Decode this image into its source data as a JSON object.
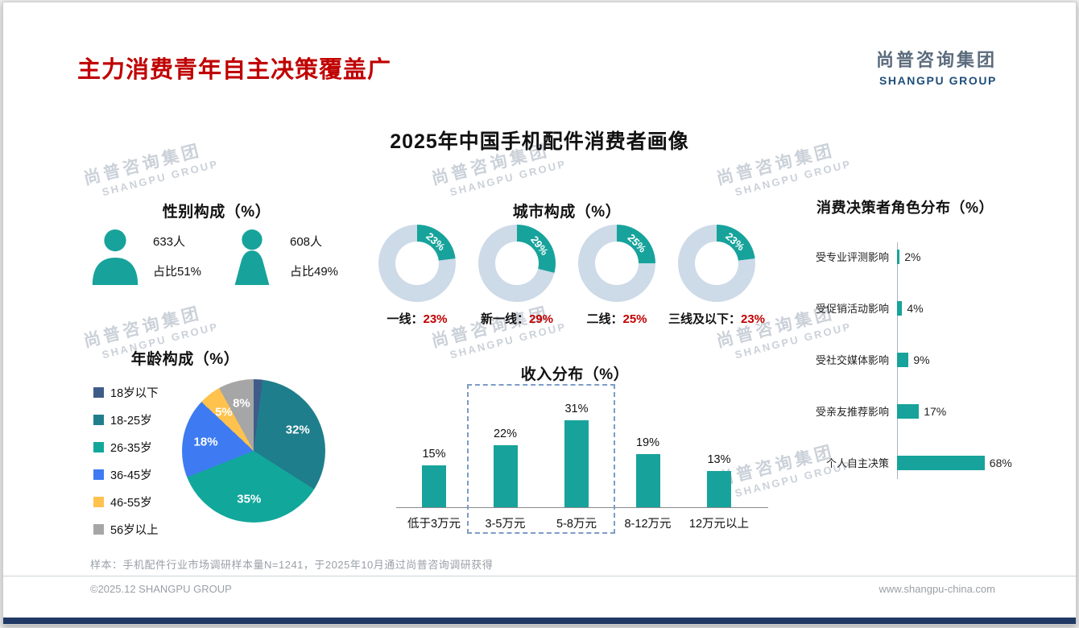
{
  "page": {
    "title": "主力消费青年自主决策覆盖广",
    "logo": {
      "cn": "尚普咨询集团",
      "en": "SHANGPU GROUP"
    },
    "main_title": "2025年中国手机配件消费者画像",
    "footnote": "样本：手机配件行业市场调研样本量N=1241，于2025年10月通过尚普咨询调研获得",
    "footer_left": "©2025.12 SHANGPU GROUP",
    "footer_right": "www.shangpu-china.com",
    "watermark": {
      "cn": "尚普咨询集团",
      "en": "SHANGPU GROUP"
    }
  },
  "colors": {
    "accent_red": "#C00000",
    "teal": "#17A39B",
    "donut_track": "#CDDAE7",
    "navy": "#1F3864",
    "logo_cn": "#5B6B7C",
    "logo_en": "#1F4E79",
    "watermark": "#CBD1D9",
    "text_gray": "#9AA0A6",
    "axis_gray": "#A9B4BF",
    "highlight_box": "#7C9CC6"
  },
  "gender": {
    "title": "性别构成（%）",
    "male": {
      "count": "633人",
      "share": "占比51%"
    },
    "female": {
      "count": "608人",
      "share": "占比49%"
    }
  },
  "city": {
    "title": "城市构成（%）",
    "items": [
      {
        "label": "一线：",
        "value": "23%",
        "pct": 23
      },
      {
        "label": "新一线：",
        "value": "29%",
        "pct": 29
      },
      {
        "label": "二线：",
        "value": "25%",
        "pct": 25
      },
      {
        "label": "三线及以下：",
        "value": "23%",
        "pct": 23
      }
    ]
  },
  "decision": {
    "title": "消费决策者角色分布（%）",
    "items": [
      {
        "label": "受专业评测影响",
        "value": "2%",
        "pct": 2
      },
      {
        "label": "受促销活动影响",
        "value": "4%",
        "pct": 4
      },
      {
        "label": "受社交媒体影响",
        "value": "9%",
        "pct": 9
      },
      {
        "label": "受亲友推荐影响",
        "value": "17%",
        "pct": 17
      },
      {
        "label": "个人自主决策",
        "value": "68%",
        "pct": 68
      }
    ]
  },
  "age": {
    "title": "年龄构成（%）",
    "slices": [
      {
        "label": "18岁以下",
        "pct": 2,
        "color": "#3E5C8A",
        "show_label": false
      },
      {
        "label": "18-25岁",
        "pct": 32,
        "color": "#1F7E8C",
        "show_label": true
      },
      {
        "label": "26-35岁",
        "pct": 35,
        "color": "#12A79B",
        "show_label": true
      },
      {
        "label": "36-45岁",
        "pct": 18,
        "color": "#3E7BF2",
        "show_label": true
      },
      {
        "label": "46-55岁",
        "pct": 5,
        "color": "#FFC24D",
        "show_label": true
      },
      {
        "label": "56岁以上",
        "pct": 8,
        "color": "#A6A6A6",
        "show_label": true
      }
    ]
  },
  "income": {
    "title": "收入分布（%）",
    "items": [
      {
        "label": "低于3万元",
        "value": "15%",
        "pct": 15
      },
      {
        "label": "3-5万元",
        "value": "22%",
        "pct": 22
      },
      {
        "label": "5-8万元",
        "value": "31%",
        "pct": 31
      },
      {
        "label": "8-12万元",
        "value": "19%",
        "pct": 19
      },
      {
        "label": "12万元以上",
        "value": "13%",
        "pct": 13
      }
    ],
    "highlight_range": [
      1,
      2
    ]
  },
  "chart_data": [
    {
      "type": "table",
      "title": "性别构成（%）",
      "columns": [
        "性别",
        "人数",
        "占比"
      ],
      "rows": [
        [
          "男",
          "633人",
          "51%"
        ],
        [
          "女",
          "608人",
          "49%"
        ]
      ]
    },
    {
      "type": "pie",
      "variant": "donut-gauges",
      "title": "城市构成（%）",
      "labels": [
        "一线",
        "新一线",
        "二线",
        "三线及以下"
      ],
      "values": [
        23,
        29,
        25,
        23
      ]
    },
    {
      "type": "bar",
      "orientation": "horizontal",
      "title": "消费决策者角色分布（%）",
      "categories": [
        "受专业评测影响",
        "受促销活动影响",
        "受社交媒体影响",
        "受亲友推荐影响",
        "个人自主决策"
      ],
      "values": [
        2,
        4,
        9,
        17,
        68
      ],
      "xlim": [
        0,
        100
      ]
    },
    {
      "type": "pie",
      "title": "年龄构成（%）",
      "labels": [
        "18岁以下",
        "18-25岁",
        "26-35岁",
        "36-45岁",
        "46-55岁",
        "56岁以上"
      ],
      "values": [
        2,
        32,
        35,
        18,
        5,
        8
      ],
      "note": "18岁以下切片未标注数值，按合计100%估计为2%"
    },
    {
      "type": "bar",
      "title": "收入分布（%）",
      "categories": [
        "低于3万元",
        "3-5万元",
        "5-8万元",
        "8-12万元",
        "12万元以上"
      ],
      "values": [
        15,
        22,
        31,
        19,
        13
      ],
      "ylim": [
        0,
        35
      ],
      "annotation": "3-5万元与5-8万元两列以蓝灰色虚线框突出显示"
    }
  ]
}
